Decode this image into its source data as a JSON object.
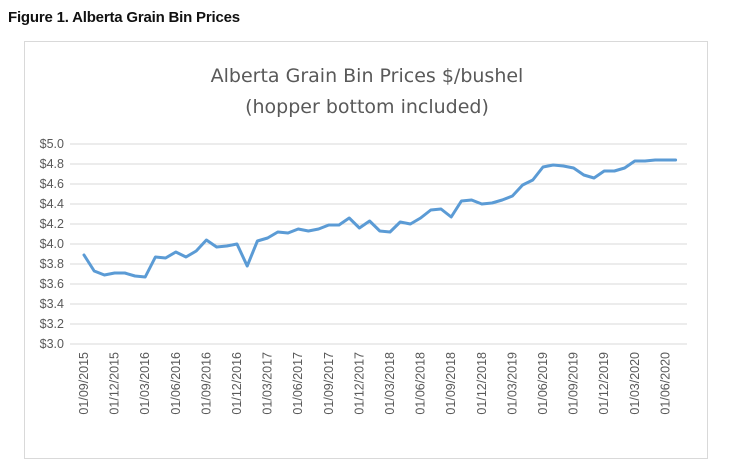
{
  "figure": {
    "caption": "Figure 1. Alberta Grain Bin Prices"
  },
  "chart_data": {
    "type": "line",
    "title": "Alberta Grain Bin Prices $/bushel",
    "subtitle": "(hopper bottom included)",
    "xlabel": "",
    "ylabel": "",
    "ylim": [
      3.0,
      5.0
    ],
    "y_ticks": [
      "$3.0",
      "$3.2",
      "$3.4",
      "$3.6",
      "$3.8",
      "$4.0",
      "$4.2",
      "$4.4",
      "$4.6",
      "$4.8",
      "$5.0"
    ],
    "x_tick_labels": [
      "01/09/2015",
      "01/12/2015",
      "01/03/2016",
      "01/06/2016",
      "01/09/2016",
      "01/12/2016",
      "01/03/2017",
      "01/06/2017",
      "01/09/2017",
      "01/12/2017",
      "01/03/2018",
      "01/06/2018",
      "01/09/2018",
      "01/12/2018",
      "01/03/2019",
      "01/06/2019",
      "01/09/2019",
      "01/12/2019",
      "01/03/2020",
      "01/06/2020"
    ],
    "grid": true,
    "line_color": "#5b9bd5",
    "series": [
      {
        "x": [
          "2015-09",
          "2015-10",
          "2015-11",
          "2015-12",
          "2016-01",
          "2016-02",
          "2016-03",
          "2016-04",
          "2016-05",
          "2016-06",
          "2016-07",
          "2016-08",
          "2016-09",
          "2016-10",
          "2016-11",
          "2016-12",
          "2017-01",
          "2017-02",
          "2017-03",
          "2017-04",
          "2017-05",
          "2017-06",
          "2017-07",
          "2017-08",
          "2017-09",
          "2017-10",
          "2017-11",
          "2017-12",
          "2018-01",
          "2018-02",
          "2018-03",
          "2018-04",
          "2018-05",
          "2018-06",
          "2018-07",
          "2018-08",
          "2018-09",
          "2018-10",
          "2018-11",
          "2018-12",
          "2019-01",
          "2019-02",
          "2019-03",
          "2019-04",
          "2019-05",
          "2019-06",
          "2019-07",
          "2019-08",
          "2019-09",
          "2019-10",
          "2019-11",
          "2019-12",
          "2020-01",
          "2020-02",
          "2020-03",
          "2020-04",
          "2020-05",
          "2020-06",
          "2020-07"
        ],
        "values": [
          3.89,
          3.73,
          3.69,
          3.71,
          3.71,
          3.68,
          3.67,
          3.87,
          3.86,
          3.92,
          3.87,
          3.93,
          4.04,
          3.97,
          3.98,
          4.0,
          3.78,
          4.03,
          4.06,
          4.12,
          4.11,
          4.15,
          4.13,
          4.15,
          4.19,
          4.19,
          4.26,
          4.16,
          4.23,
          4.13,
          4.12,
          4.22,
          4.2,
          4.26,
          4.34,
          4.35,
          4.27,
          4.43,
          4.44,
          4.4,
          4.41,
          4.44,
          4.48,
          4.59,
          4.64,
          4.77,
          4.79,
          4.78,
          4.76,
          4.69,
          4.66,
          4.73,
          4.73,
          4.76,
          4.83,
          4.83,
          4.84,
          4.84,
          4.84
        ]
      }
    ]
  }
}
